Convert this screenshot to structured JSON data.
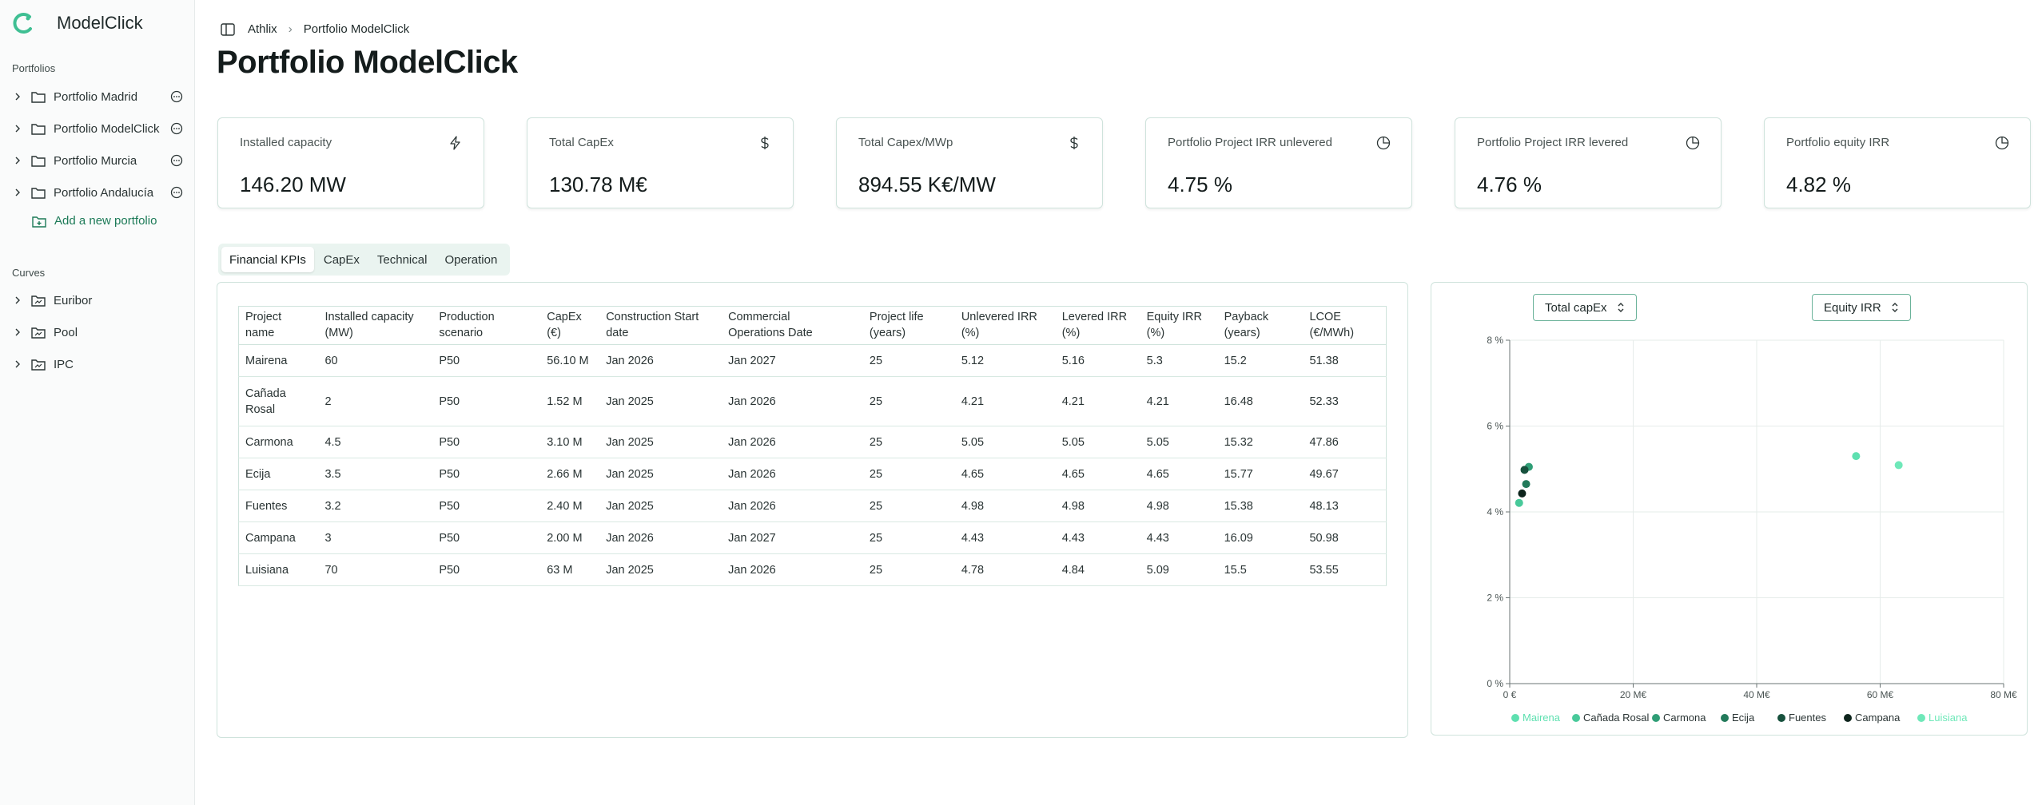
{
  "app": {
    "name": "ModelClick"
  },
  "sidebar": {
    "portfolios_heading": "Portfolios",
    "portfolios": [
      {
        "label": "Portfolio Madrid"
      },
      {
        "label": "Portfolio ModelClick"
      },
      {
        "label": "Portfolio Murcia"
      },
      {
        "label": "Portfolio Andalucía"
      }
    ],
    "add_portfolio_label": "Add a new portfolio",
    "curves_heading": "Curves",
    "curves": [
      {
        "label": "Euribor"
      },
      {
        "label": "Pool"
      },
      {
        "label": "IPC"
      }
    ]
  },
  "breadcrumb": {
    "root": "Athlix",
    "current": "Portfolio ModelClick"
  },
  "page": {
    "title": "Portfolio ModelClick"
  },
  "kpis": [
    {
      "label": "Installed capacity",
      "value": "146.20 MW",
      "icon": "bolt-icon"
    },
    {
      "label": "Total CapEx",
      "value": "130.78 M€",
      "icon": "dollar-icon"
    },
    {
      "label": "Total Capex/MWp",
      "value": "894.55 K€/MW",
      "icon": "dollar-icon"
    },
    {
      "label": "Portfolio Project IRR unlevered",
      "value": "4.75 %",
      "icon": "pie-chart-icon"
    },
    {
      "label": "Portfolio Project IRR levered",
      "value": "4.76 %",
      "icon": "pie-chart-icon"
    },
    {
      "label": "Portfolio equity IRR",
      "value": "4.82 %",
      "icon": "pie-chart-icon"
    }
  ],
  "tabs": [
    {
      "label": "Financial KPIs",
      "active": true
    },
    {
      "label": "CapEx"
    },
    {
      "label": "Technical"
    },
    {
      "label": "Operation"
    }
  ],
  "table": {
    "headers": [
      [
        "Project",
        "name"
      ],
      [
        "Installed capacity",
        "(MW)"
      ],
      [
        "Production",
        "scenario"
      ],
      [
        "CapEx",
        "(€)"
      ],
      [
        "Construction Start",
        "date"
      ],
      [
        "Commercial",
        "Operations Date"
      ],
      [
        "Project life",
        "(years)"
      ],
      [
        "Unlevered IRR",
        "(%)"
      ],
      [
        "Levered IRR",
        "(%)"
      ],
      [
        "Equity IRR",
        "(%)"
      ],
      [
        "Payback",
        "(years)"
      ],
      [
        "LCOE",
        "(€/MWh)"
      ]
    ],
    "rows": [
      [
        "Mairena",
        "60",
        "P50",
        "56.10 M",
        "Jan 2026",
        "Jan 2027",
        "25",
        "5.12",
        "5.16",
        "5.3",
        "15.2",
        "51.38"
      ],
      [
        "Cañada Rosal",
        "2",
        "P50",
        "1.52 M",
        "Jan 2025",
        "Jan 2026",
        "25",
        "4.21",
        "4.21",
        "4.21",
        "16.48",
        "52.33"
      ],
      [
        "Carmona",
        "4.5",
        "P50",
        "3.10 M",
        "Jan 2025",
        "Jan 2026",
        "25",
        "5.05",
        "5.05",
        "5.05",
        "15.32",
        "47.86"
      ],
      [
        "Ecija",
        "3.5",
        "P50",
        "2.66 M",
        "Jan 2025",
        "Jan 2026",
        "25",
        "4.65",
        "4.65",
        "4.65",
        "15.77",
        "49.67"
      ],
      [
        "Fuentes",
        "3.2",
        "P50",
        "2.40 M",
        "Jan 2025",
        "Jan 2026",
        "25",
        "4.98",
        "4.98",
        "4.98",
        "15.38",
        "48.13"
      ],
      [
        "Campana",
        "3",
        "P50",
        "2.00 M",
        "Jan 2026",
        "Jan 2027",
        "25",
        "4.43",
        "4.43",
        "4.43",
        "16.09",
        "50.98"
      ],
      [
        "Luisiana",
        "70",
        "P50",
        "63 M",
        "Jan 2025",
        "Jan 2026",
        "25",
        "4.78",
        "4.84",
        "5.09",
        "15.5",
        "53.55"
      ]
    ]
  },
  "chart_controls": {
    "x_select": "Total capEx",
    "y_select": "Equity IRR"
  },
  "chart_data": {
    "type": "scatter",
    "xlim": [
      0,
      80
    ],
    "ylim": [
      0,
      8
    ],
    "x_ticks": [
      "0 €",
      "20 M€",
      "40 M€",
      "60 M€",
      "80 M€"
    ],
    "y_ticks": [
      "0 %",
      "2 %",
      "4 %",
      "6 %",
      "8 %"
    ],
    "x_tick_values": [
      0,
      20,
      40,
      60,
      80
    ],
    "y_tick_values": [
      0,
      2,
      4,
      6,
      8
    ],
    "grid": true,
    "legend_position": "bottom",
    "series": [
      {
        "name": "Mairena",
        "color": "#5ee0b0",
        "x": [
          56.1
        ],
        "y": [
          5.3
        ]
      },
      {
        "name": "Cañada Rosal",
        "color": "#48c99a",
        "x": [
          1.52
        ],
        "y": [
          4.21
        ]
      },
      {
        "name": "Carmona",
        "color": "#2f9e76",
        "x": [
          3.1
        ],
        "y": [
          5.05
        ]
      },
      {
        "name": "Ecija",
        "color": "#237a5b",
        "x": [
          2.66
        ],
        "y": [
          4.65
        ]
      },
      {
        "name": "Fuentes",
        "color": "#17513d",
        "x": [
          2.4
        ],
        "y": [
          4.98
        ]
      },
      {
        "name": "Campana",
        "color": "#0d241c",
        "x": [
          2.0
        ],
        "y": [
          4.43
        ]
      },
      {
        "name": "Luisiana",
        "color": "#6fe8b9",
        "x": [
          63
        ],
        "y": [
          5.09
        ]
      }
    ]
  }
}
